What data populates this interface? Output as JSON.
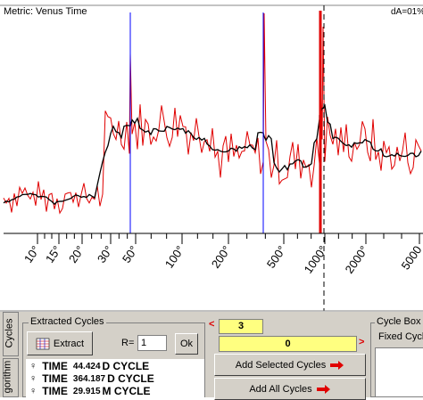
{
  "chart": {
    "title": "Metric: Venus Time",
    "top_right": "dA=01%",
    "x_ticks": [
      "10°",
      "15°",
      "20°",
      "30°",
      "50°",
      "100°",
      "200°",
      "500°",
      "1000°",
      "2000°",
      "5000"
    ]
  },
  "colors": {
    "blue": "#0000ff",
    "red": "#e00000",
    "black": "#000000",
    "yellow": "#ffff80"
  },
  "side_tabs": {
    "cycles": "Cycles",
    "algorithm": "gorithm"
  },
  "extracted": {
    "group_label": "Extracted Cycles",
    "extract_label": "Extract",
    "r_label": "R=",
    "r_value": "1",
    "ok_label": "Ok",
    "rows": [
      {
        "name": "TIME",
        "value": "44.424",
        "type": "D CYCLE"
      },
      {
        "name": "TIME",
        "value": "364.187",
        "type": "D CYCLE"
      },
      {
        "name": "TIME",
        "value": "29.915",
        "type": "M CYCLE"
      }
    ]
  },
  "nav": {
    "left_arrow": "<",
    "right_arrow": ">",
    "count": "3",
    "index": "0"
  },
  "actions": {
    "add_selected": "Add Selected Cycles",
    "add_all": "Add All Cycles"
  },
  "cycle_box": {
    "title": "Cycle Box F",
    "fixed": "Fixed Cycle"
  }
}
